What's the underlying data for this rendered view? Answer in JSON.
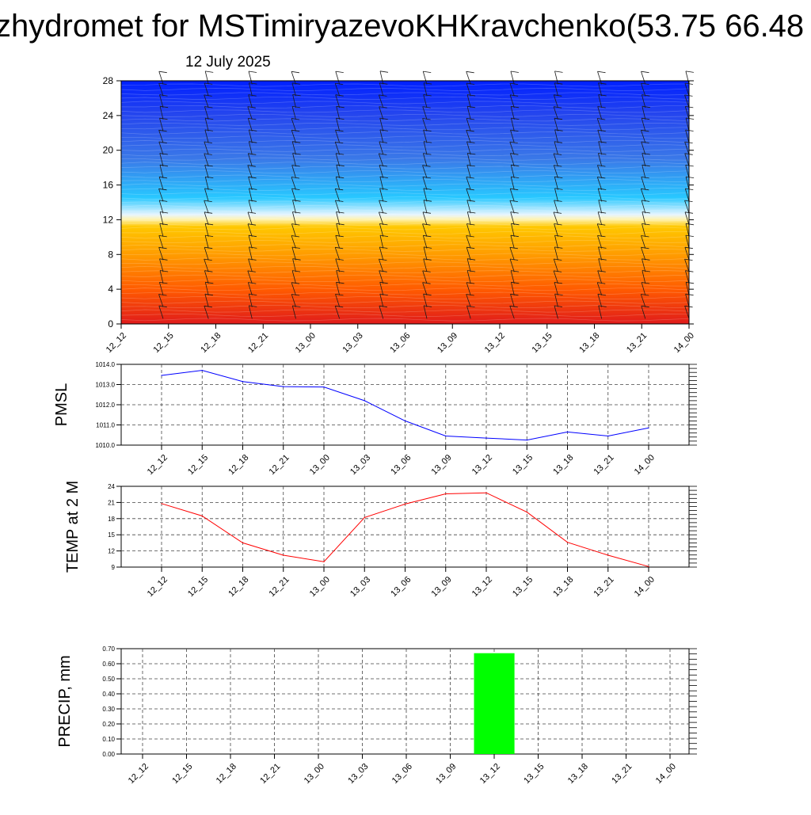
{
  "header": {
    "title": "zhydromet for MSTimiryazevoKHKravchenko(53.75 66.48",
    "subtitle": "12 July 2025"
  },
  "chart_data": [
    {
      "type": "heatmap",
      "title": "",
      "xlabel": "",
      "ylabel": "",
      "categories": [
        "12_12",
        "12_15",
        "12_18",
        "12_21",
        "13_00",
        "13_03",
        "13_06",
        "13_09",
        "13_12",
        "13_15",
        "13_18",
        "13_21",
        "14_00"
      ],
      "y_ticks": [
        0,
        4,
        8,
        12,
        16,
        20,
        24,
        28
      ],
      "ylim": [
        0,
        28
      ],
      "colormap": [
        "#e01b1b",
        "#ff5a00",
        "#ff9a00",
        "#ffc800",
        "#fff0a0",
        "#e8f6ff",
        "#28c8ff",
        "#2f6ef0",
        "#0020ff"
      ],
      "freezing_level": 12.5,
      "wind_barbs": true
    },
    {
      "type": "line",
      "ylabel": "PMSL",
      "categories": [
        "12_12",
        "12_15",
        "12_18",
        "12_21",
        "13_00",
        "13_03",
        "13_06",
        "13_09",
        "13_12",
        "13_15",
        "13_18",
        "13_21",
        "14_00"
      ],
      "y_ticks": [
        "1010.0",
        "1011.0",
        "1012.0",
        "1013.0",
        "1014.0"
      ],
      "ylim": [
        1010,
        1014
      ],
      "series": [
        {
          "values": [
            1013.45,
            1013.7,
            1013.15,
            1012.9,
            1012.88,
            1012.2,
            1011.2,
            1010.45,
            1010.35,
            1010.25,
            1010.65,
            1010.45,
            1010.85
          ]
        }
      ],
      "color": "#0000ff",
      "grid": true
    },
    {
      "type": "line",
      "ylabel": "TEMP at 2 M",
      "categories": [
        "12_12",
        "12_15",
        "12_18",
        "12_21",
        "13_00",
        "13_03",
        "13_06",
        "13_09",
        "13_12",
        "13_15",
        "13_18",
        "13_21",
        "14_00"
      ],
      "y_ticks": [
        "9",
        "12",
        "15",
        "18",
        "21",
        "24"
      ],
      "ylim": [
        9,
        24
      ],
      "series": [
        {
          "values": [
            20.8,
            18.5,
            13.5,
            11.2,
            10.0,
            18.2,
            20.7,
            22.6,
            22.8,
            19.2,
            13.6,
            11.2,
            9.1
          ]
        }
      ],
      "color": "#ff0000",
      "grid": true
    },
    {
      "type": "bar",
      "ylabel": "PRECIP, mm",
      "categories": [
        "12_12",
        "12_15",
        "12_18",
        "12_21",
        "13_00",
        "13_03",
        "13_06",
        "13_09",
        "13_12",
        "13_15",
        "13_18",
        "13_21",
        "14_00"
      ],
      "y_ticks": [
        "0.00",
        "0.10",
        "0.20",
        "0.30",
        "0.40",
        "0.50",
        "0.60",
        "0.70"
      ],
      "ylim": [
        0,
        0.7
      ],
      "series": [
        {
          "values": [
            0,
            0,
            0,
            0,
            0,
            0,
            0,
            0,
            0.67,
            0,
            0,
            0,
            0
          ]
        }
      ],
      "color": "#00ff00",
      "grid": true
    }
  ]
}
